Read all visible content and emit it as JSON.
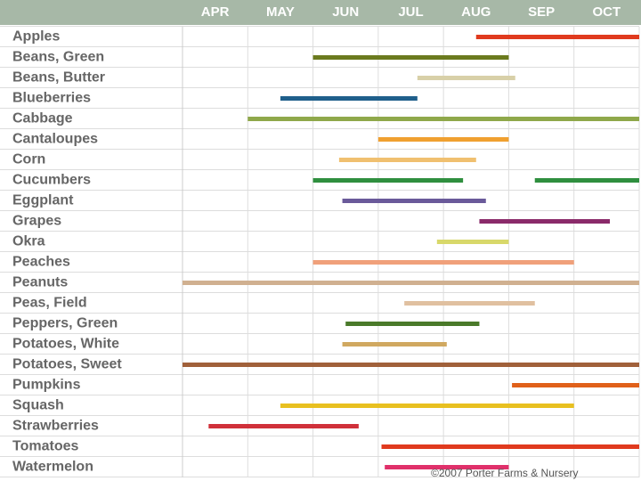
{
  "chart_data": {
    "type": "gantt",
    "xlim": [
      4,
      11
    ],
    "xticks": [
      {
        "value": 4.5,
        "label": "APR"
      },
      {
        "value": 5.5,
        "label": "MAY"
      },
      {
        "value": 6.5,
        "label": "JUN"
      },
      {
        "value": 7.5,
        "label": "JUL"
      },
      {
        "value": 8.5,
        "label": "AUG"
      },
      {
        "value": 9.5,
        "label": "SEP"
      },
      {
        "value": 10.5,
        "label": "OCT"
      }
    ],
    "grid": true,
    "rows": [
      {
        "label": "Apples",
        "color": "#e03a1e",
        "spans": [
          [
            8.5,
            11
          ]
        ]
      },
      {
        "label": "Beans, Green",
        "color": "#6b7a1e",
        "spans": [
          [
            6,
            9
          ]
        ]
      },
      {
        "label": "Beans, Butter",
        "color": "#d8d0a8",
        "spans": [
          [
            7.6,
            9.1
          ]
        ]
      },
      {
        "label": "Blueberries",
        "color": "#1f5f8b",
        "spans": [
          [
            5.5,
            7.6
          ]
        ]
      },
      {
        "label": "Cabbage",
        "color": "#8fa84a",
        "spans": [
          [
            5,
            11
          ]
        ]
      },
      {
        "label": "Cantaloupes",
        "color": "#f0a030",
        "spans": [
          [
            7,
            9
          ]
        ]
      },
      {
        "label": "Corn",
        "color": "#f0c070",
        "spans": [
          [
            6.4,
            8.5
          ]
        ]
      },
      {
        "label": "Cucumbers",
        "color": "#2f8f3f",
        "spans": [
          [
            6,
            8.3
          ],
          [
            9.4,
            11
          ]
        ]
      },
      {
        "label": "Eggplant",
        "color": "#6a5a9a",
        "spans": [
          [
            6.45,
            8.65
          ]
        ]
      },
      {
        "label": "Grapes",
        "color": "#8a2a6a",
        "spans": [
          [
            8.55,
            10.55
          ]
        ]
      },
      {
        "label": "Okra",
        "color": "#d8d86a",
        "spans": [
          [
            7.9,
            9
          ]
        ]
      },
      {
        "label": "Peaches",
        "color": "#f0a07a",
        "spans": [
          [
            6,
            10
          ]
        ]
      },
      {
        "label": "Peanuts",
        "color": "#d0b090",
        "spans": [
          [
            4,
            11
          ]
        ]
      },
      {
        "label": "Peas, Field",
        "color": "#e0c0a0",
        "spans": [
          [
            7.4,
            9.4
          ]
        ]
      },
      {
        "label": "Peppers, Green",
        "color": "#4a7a2a",
        "spans": [
          [
            6.5,
            8.55
          ]
        ]
      },
      {
        "label": "Potatoes, White",
        "color": "#d0a860",
        "spans": [
          [
            6.45,
            8.05
          ]
        ]
      },
      {
        "label": "Potatoes, Sweet",
        "color": "#a0603a",
        "spans": [
          [
            4,
            11
          ]
        ]
      },
      {
        "label": "Pumpkins",
        "color": "#e0601a",
        "spans": [
          [
            9.05,
            11
          ]
        ]
      },
      {
        "label": "Squash",
        "color": "#e8c020",
        "spans": [
          [
            5.5,
            10
          ]
        ]
      },
      {
        "label": "Strawberries",
        "color": "#d0303a",
        "spans": [
          [
            4.4,
            6.7
          ]
        ]
      },
      {
        "label": "Tomatoes",
        "color": "#e03a1e",
        "spans": [
          [
            7.05,
            11
          ]
        ]
      },
      {
        "label": "Watermelon",
        "color": "#e0306a",
        "spans": [
          [
            7.1,
            9
          ]
        ]
      }
    ],
    "credit": "©2007 Porter Farms & Nursery"
  }
}
